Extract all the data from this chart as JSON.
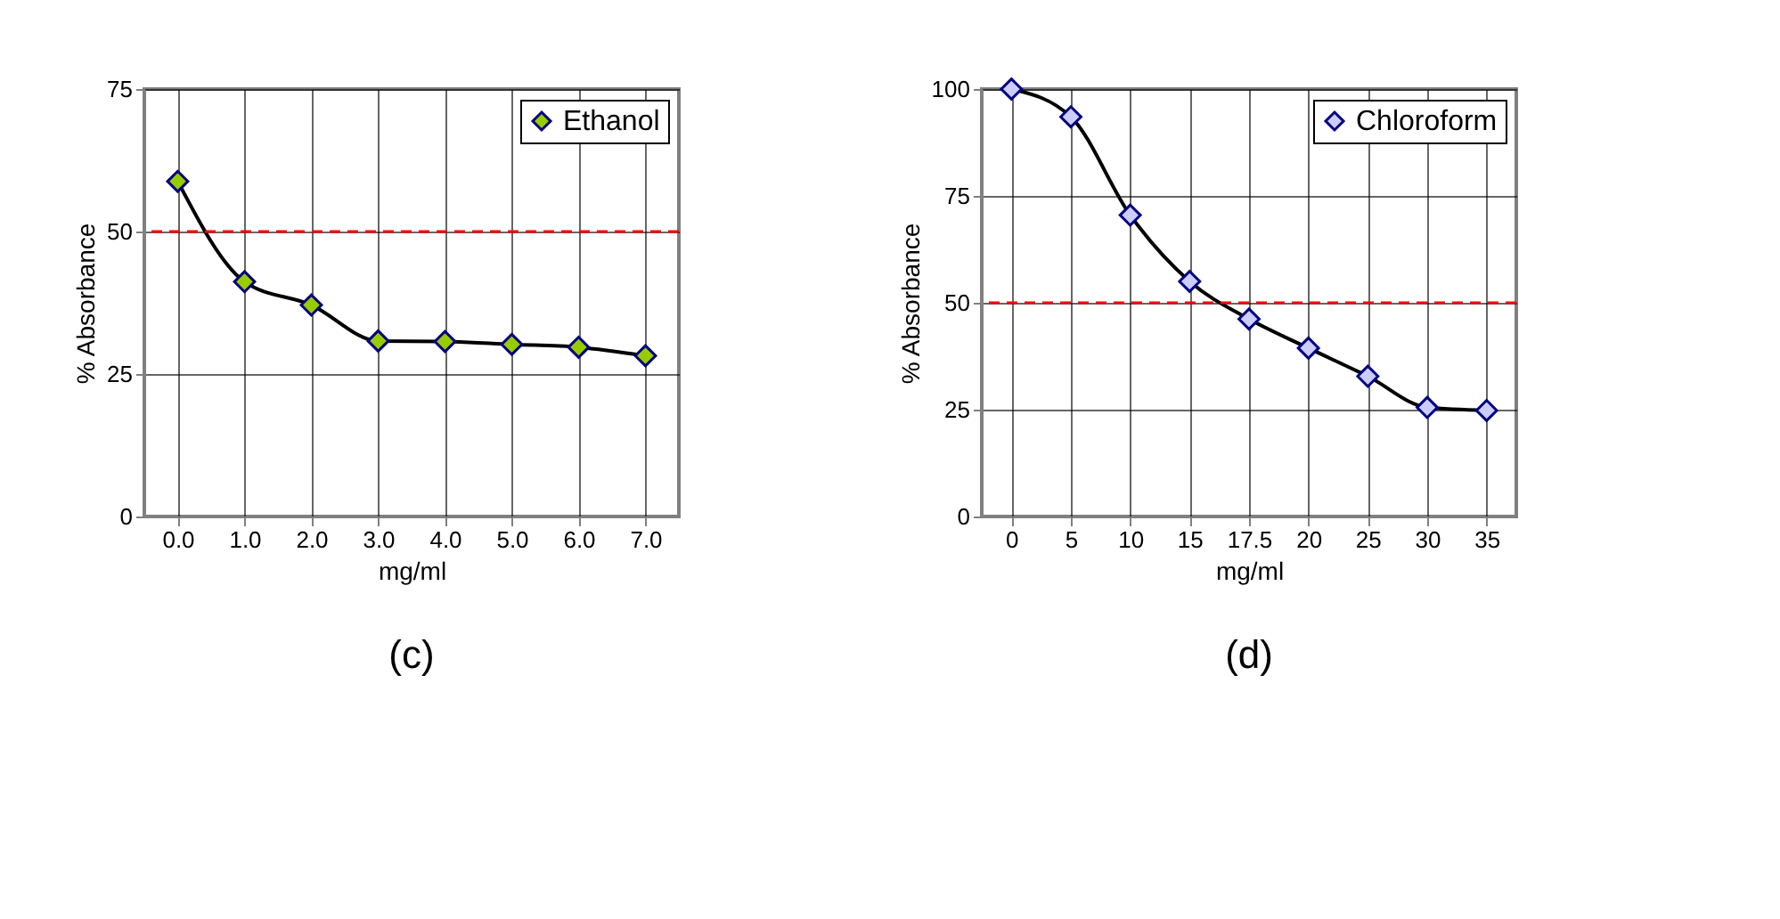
{
  "chart_data": [
    {
      "type": "line",
      "xlabel": "mg/ml",
      "ylabel": "% Absorbance",
      "categories": [
        "0.0",
        "1.0",
        "2.0",
        "3.0",
        "4.0",
        "5.0",
        "6.0",
        "7.0"
      ],
      "series": [
        {
          "name": "Ethanol",
          "color": "#99cc00",
          "values": [
            58.8,
            41.2,
            37.1,
            30.8,
            30.7,
            30.2,
            29.7,
            28.2
          ]
        }
      ],
      "ylim": [
        0,
        75
      ],
      "yticks": [
        0,
        25,
        50,
        75
      ],
      "grid": true,
      "legend": "top right",
      "marker": "diamond",
      "line_style": "solid",
      "ref_lines": [
        {
          "axis": "y",
          "value": 50,
          "color": "#ff0000",
          "line_style": "dashed"
        }
      ],
      "annotations": [
        "(c)"
      ]
    },
    {
      "type": "line",
      "xlabel": "mg/ml",
      "ylabel": "% Absorbance",
      "categories": [
        "0",
        "5",
        "10",
        "15",
        "17.5",
        "20",
        "25",
        "30",
        "35"
      ],
      "series": [
        {
          "name": "Chloroform",
          "color": "#ccccff",
          "values": [
            100,
            93.5,
            70.5,
            55.0,
            46.2,
            39.4,
            32.8,
            25.5,
            24.8
          ]
        }
      ],
      "ylim": [
        0,
        100
      ],
      "yticks": [
        0,
        25,
        50,
        75,
        100
      ],
      "grid": true,
      "legend": "top right",
      "marker": "diamond",
      "line_style": "solid",
      "ref_lines": [
        {
          "axis": "y",
          "value": 50,
          "color": "#ff0000",
          "line_style": "dashed"
        }
      ],
      "annotations": [
        "(d)"
      ]
    }
  ]
}
